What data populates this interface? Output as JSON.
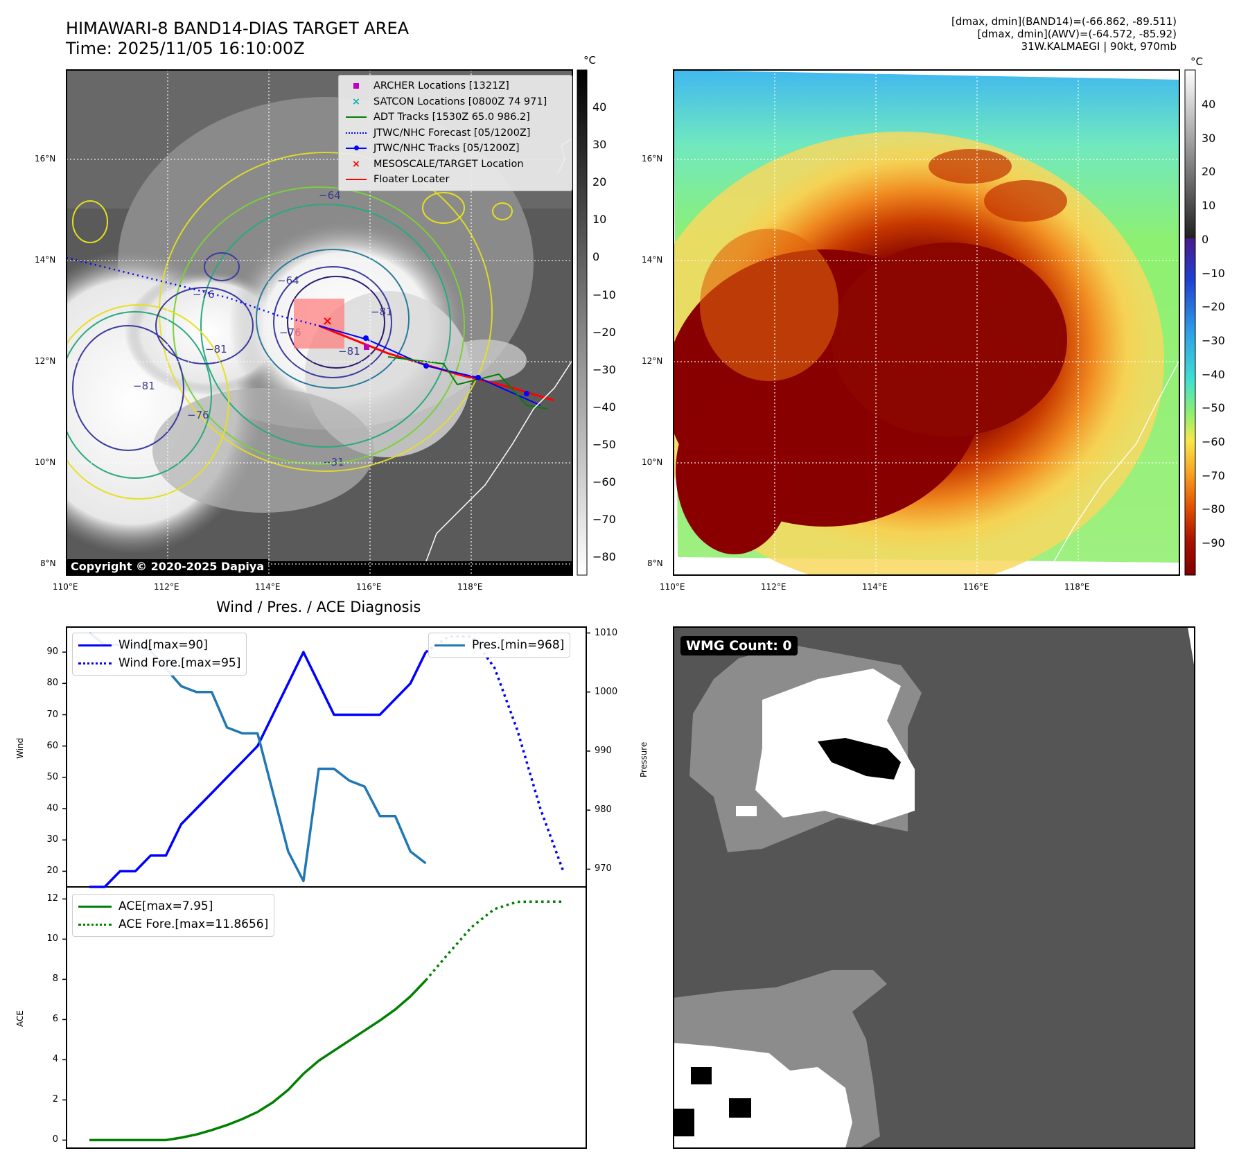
{
  "header": {
    "title_line1": "HIMAWARI-8 BAND14-DIAS TARGET AREA",
    "title_line2": "Time: 2025/11/05 16:10:00Z",
    "info_line1": "[dmax, dmin](BAND14)=(-66.862, -89.511)",
    "info_line2": "[dmax, dmin](AWV)=(-64.572, -85.92)",
    "info_line3": "31W.KALMAEGI | 90kt, 970mb"
  },
  "map_ir": {
    "copyright": "Copyright © 2020-2025 Dapiya",
    "lat_labels": [
      "16°N",
      "14°N",
      "12°N",
      "10°N",
      "8°N"
    ],
    "lon_labels": [
      "110°E",
      "112°E",
      "114°E",
      "116°E",
      "118°E"
    ],
    "colorbar_unit": "°C",
    "colorbar_ticks": [
      "40",
      "30",
      "20",
      "10",
      "0",
      "−10",
      "−20",
      "−30",
      "−40",
      "−50",
      "−60",
      "−70",
      "−80"
    ],
    "contour_labels": [
      "−64",
      "−76",
      "−81",
      "−64",
      "−81",
      "−76",
      "−81",
      "−76",
      "−81",
      "−31"
    ],
    "legend": [
      {
        "label": "ARCHER Locations [1321Z]",
        "color": "#c000c0",
        "icon": "square-marker"
      },
      {
        "label": "SATCON Locations [0800Z 74 971]",
        "color": "#00b0b0",
        "icon": "x-marker"
      },
      {
        "label": "ADT Tracks [1530Z 65.0 986.2]",
        "color": "#008000",
        "icon": "solid-line"
      },
      {
        "label": "JTWC/NHC Forecast [05/1200Z]",
        "color": "#0000ff",
        "icon": "dotted-line"
      },
      {
        "label": "JTWC/NHC Tracks [05/1200Z]",
        "color": "#0000ff",
        "icon": "line-dot-marker"
      },
      {
        "label": "MESOSCALE/TARGET Location",
        "color": "#ff0000",
        "icon": "x-marker"
      },
      {
        "label": "Floater Locater",
        "color": "#ff0000",
        "icon": "solid-line"
      }
    ]
  },
  "map_awv": {
    "lat_labels": [
      "16°N",
      "14°N",
      "12°N",
      "10°N",
      "8°N"
    ],
    "lon_labels": [
      "110°E",
      "112°E",
      "114°E",
      "116°E",
      "118°E"
    ],
    "colorbar_unit": "°C",
    "colorbar_ticks": [
      "40",
      "30",
      "20",
      "10",
      "0",
      "−10",
      "−20",
      "−30",
      "−40",
      "−50",
      "−60",
      "−70",
      "−80",
      "−90"
    ]
  },
  "wmg": {
    "label": "WMG Count: 0"
  },
  "chart_data": [
    {
      "type": "line",
      "title": "Wind / Pres. / ACE Diagnosis",
      "ylabel": "Wind",
      "y2label": "Pressure",
      "ylim": [
        15,
        98
      ],
      "y2lim": [
        967,
        1011
      ],
      "yticks": [
        20,
        30,
        40,
        50,
        60,
        70,
        80,
        90
      ],
      "y2ticks": [
        970,
        980,
        990,
        1000,
        1010
      ],
      "series": [
        {
          "name": "Wind[max=90]",
          "color": "#0000ff",
          "style": "solid",
          "x": [
            0,
            1,
            2,
            3,
            4,
            5,
            6,
            7,
            8,
            9,
            10,
            11,
            12,
            13,
            14,
            15,
            16,
            17,
            18,
            19,
            20,
            21,
            22
          ],
          "values": [
            15,
            15,
            20,
            20,
            25,
            25,
            35,
            40,
            45,
            50,
            55,
            60,
            70,
            80,
            90,
            80,
            70,
            70,
            70,
            70,
            75,
            80,
            90
          ]
        },
        {
          "name": "Wind Fore.[max=95]",
          "color": "#0000ff",
          "style": "dotted",
          "x": [
            22,
            23.5,
            25,
            26.5,
            28,
            29.5,
            31
          ],
          "values": [
            90,
            95,
            95,
            85,
            65,
            40,
            20
          ]
        },
        {
          "name": "Pres.[min=968]",
          "color": "#1f77b4",
          "style": "solid",
          "axis": "right",
          "x": [
            0,
            1,
            2,
            3,
            4,
            5,
            6,
            7,
            8,
            9,
            10,
            11,
            12,
            13,
            14,
            15,
            16,
            17,
            18,
            19,
            20,
            21,
            22
          ],
          "values": [
            1010,
            1008,
            1008,
            1008,
            1007,
            1004,
            1001,
            1000,
            1000,
            994,
            993,
            993,
            983,
            973,
            968,
            987,
            987,
            985,
            984,
            979,
            979,
            973,
            971
          ]
        }
      ]
    },
    {
      "type": "line",
      "ylabel": "ACE",
      "ylim": [
        -0.4,
        12.6
      ],
      "yticks": [
        0,
        2,
        4,
        6,
        8,
        10,
        12
      ],
      "series": [
        {
          "name": "ACE[max=7.95]",
          "color": "#008000",
          "style": "solid",
          "x": [
            0,
            1,
            2,
            3,
            4,
            5,
            6,
            7,
            8,
            9,
            10,
            11,
            12,
            13,
            14,
            15,
            16,
            17,
            18,
            19,
            20,
            21,
            22
          ],
          "values": [
            0,
            0,
            0,
            0,
            0,
            0,
            0.12,
            0.28,
            0.5,
            0.75,
            1.05,
            1.4,
            1.88,
            2.5,
            3.3,
            3.95,
            4.45,
            4.95,
            5.45,
            5.95,
            6.5,
            7.15,
            7.95
          ]
        },
        {
          "name": "ACE Fore.[max=11.8656]",
          "color": "#008000",
          "style": "dotted",
          "x": [
            22,
            23.5,
            25,
            26.5,
            28,
            29.5,
            31
          ],
          "values": [
            7.95,
            9.3,
            10.6,
            11.5,
            11.86,
            11.87,
            11.87
          ]
        }
      ]
    }
  ]
}
